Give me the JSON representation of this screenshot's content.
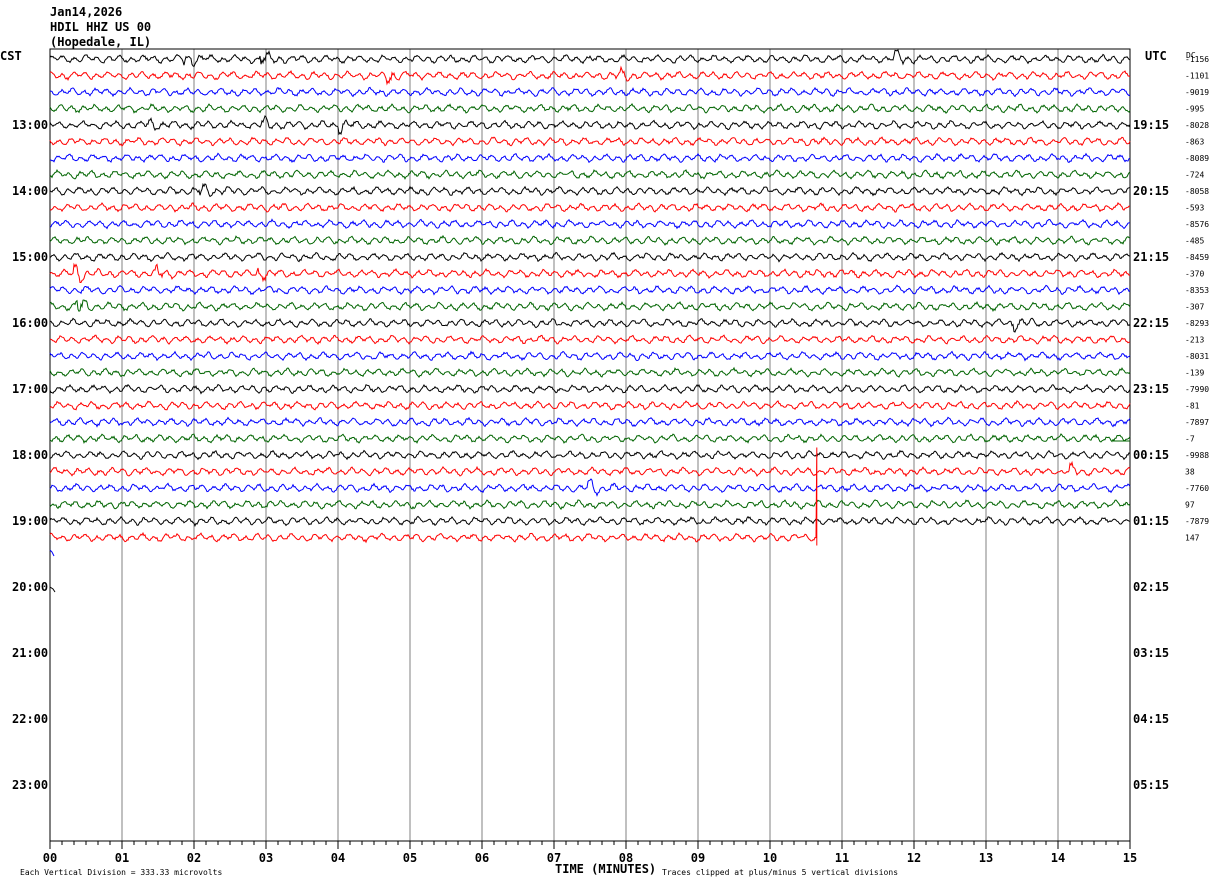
{
  "header": {
    "date": "Jan14,2026",
    "station": "HDIL HHZ US 00",
    "location": "(Hopedale, IL)"
  },
  "left_tz": "CST",
  "right_tz": "UTC",
  "dc_label": "DC",
  "footer": {
    "vertical_division": "Each Vertical Division =  333.33 microvolts",
    "xlabel": "TIME (MINUTES)",
    "clip_note": "Traces clipped at plus/minus 5 vertical divisions"
  },
  "colors": {
    "cycle": [
      "#000000",
      "#ff0000",
      "#0000ff",
      "#006400"
    ],
    "grid": "#808080"
  },
  "chart_data": {
    "type": "line",
    "title": "HDIL HHZ US 00",
    "xlabel": "TIME (MINUTES)",
    "x_range": [
      0,
      15
    ],
    "x_ticks": [
      "00",
      "01",
      "02",
      "03",
      "04",
      "05",
      "06",
      "07",
      "08",
      "09",
      "10",
      "11",
      "12",
      "13",
      "14",
      "15"
    ],
    "rows_per_hour": 4,
    "hour_labels_cst": [
      "13:00",
      "14:00",
      "15:00",
      "16:00",
      "17:00",
      "18:00",
      "19:00",
      "20:00",
      "21:00",
      "22:00",
      "23:00"
    ],
    "hour_labels_utc": [
      "19:15",
      "20:15",
      "21:15",
      "22:15",
      "23:15",
      "00:15",
      "01:15",
      "02:15",
      "03:15",
      "04:15",
      "05:15"
    ],
    "trace_count": 30,
    "last_trace_end_minute": 10.65,
    "dc_offsets": [
      "-1156",
      "-1101",
      "-9019",
      "-995",
      "-8028",
      "-863",
      "-8089",
      "-724",
      "-8058",
      "-593",
      "-8576",
      "-485",
      "-8459",
      "-370",
      "-8353",
      "-307",
      "-8293",
      "-213",
      "-8031",
      "-139",
      "-7990",
      "-81",
      "-7897",
      "-7",
      "-9988",
      "38",
      "-7760",
      "97",
      "-7879",
      "147"
    ],
    "events": [
      {
        "trace": 0,
        "minute": 1.9,
        "amp": 1.6
      },
      {
        "trace": 0,
        "minute": 2.95,
        "amp": 1.8
      },
      {
        "trace": 0,
        "minute": 11.75,
        "amp": 1.8
      },
      {
        "trace": 1,
        "minute": 4.7,
        "amp": 2.0
      },
      {
        "trace": 1,
        "minute": 7.9,
        "amp": 1.5
      },
      {
        "trace": 4,
        "minute": 1.35,
        "amp": 1.6
      },
      {
        "trace": 4,
        "minute": 2.95,
        "amp": 1.6
      },
      {
        "trace": 4,
        "minute": 4.05,
        "amp": 1.5
      },
      {
        "trace": 8,
        "minute": 2.1,
        "amp": 1.6
      },
      {
        "trace": 13,
        "minute": 0.35,
        "amp": 3.5
      },
      {
        "trace": 13,
        "minute": 1.5,
        "amp": 1.7
      },
      {
        "trace": 13,
        "minute": 2.9,
        "amp": 1.5
      },
      {
        "trace": 15,
        "minute": 0.4,
        "amp": 2.2
      },
      {
        "trace": 16,
        "minute": 13.4,
        "amp": 1.8
      },
      {
        "trace": 25,
        "minute": 14.2,
        "amp": 1.5
      },
      {
        "trace": 26,
        "minute": 7.5,
        "amp": 2.0
      }
    ]
  }
}
